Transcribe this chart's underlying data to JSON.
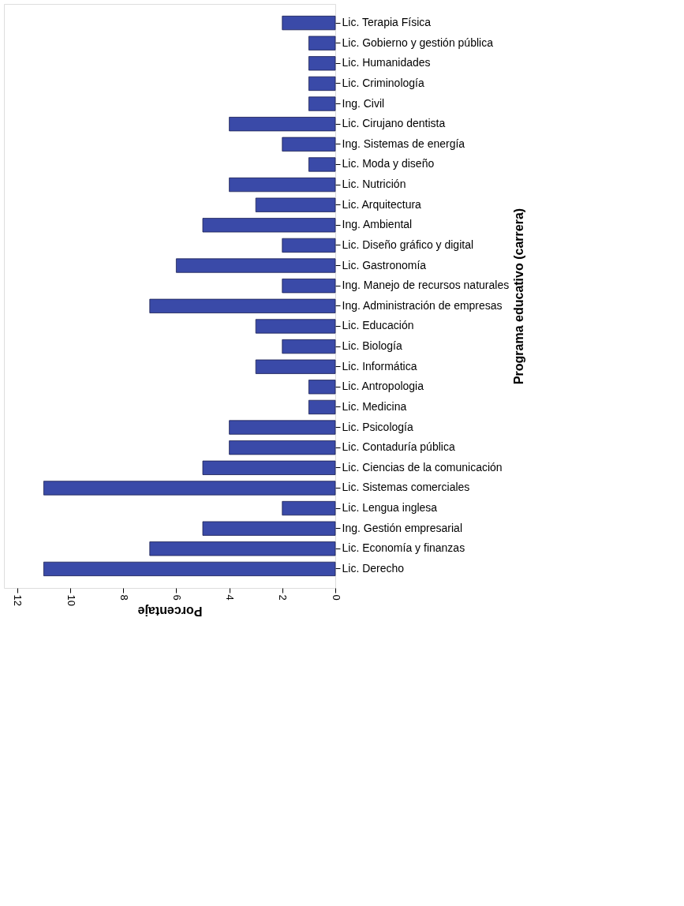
{
  "chart_data": {
    "type": "bar",
    "orientation": "horizontal",
    "xlabel": "Porcentaje",
    "ylabel": "Programa educativo (carrera)",
    "categories": [
      "Lic. Terapia Física",
      "Lic. Gobierno y gestión pública",
      "Lic. Humanidades",
      "Lic. Criminología",
      "Ing. Civil",
      "Lic. Cirujano dentista",
      "Ing. Sistemas de energía",
      "Lic. Moda y diseño",
      "Lic. Nutrición",
      "Lic. Arquitectura",
      "Ing. Ambiental",
      "Lic. Diseño gráfico y digital",
      "Lic. Gastronomía",
      "Ing. Manejo de recursos naturales",
      "Ing. Administración de empresas",
      "Lic. Educación",
      "Lic. Biología",
      "Lic. Informática",
      "Lic. Antropologia",
      "Lic. Medicina",
      "Lic. Psicología",
      "Lic. Contaduría pública",
      "Lic. Ciencias de la comunicación",
      "Lic. Sistemas comerciales",
      "Lic. Lengua inglesa",
      "Ing. Gestión empresarial",
      "Lic. Economía y finanzas",
      "Lic. Derecho"
    ],
    "values": [
      2,
      1,
      1,
      1,
      1,
      4,
      2,
      1,
      4,
      3,
      5,
      2,
      6,
      2,
      7,
      3,
      2,
      3,
      1,
      1,
      4,
      4,
      5,
      11,
      2,
      5,
      7,
      11
    ],
    "color": "#3a4aa8",
    "xlim": [
      12.5,
      0
    ],
    "xticks": [
      12,
      10,
      8,
      6,
      4,
      2,
      0
    ],
    "grid": false
  }
}
